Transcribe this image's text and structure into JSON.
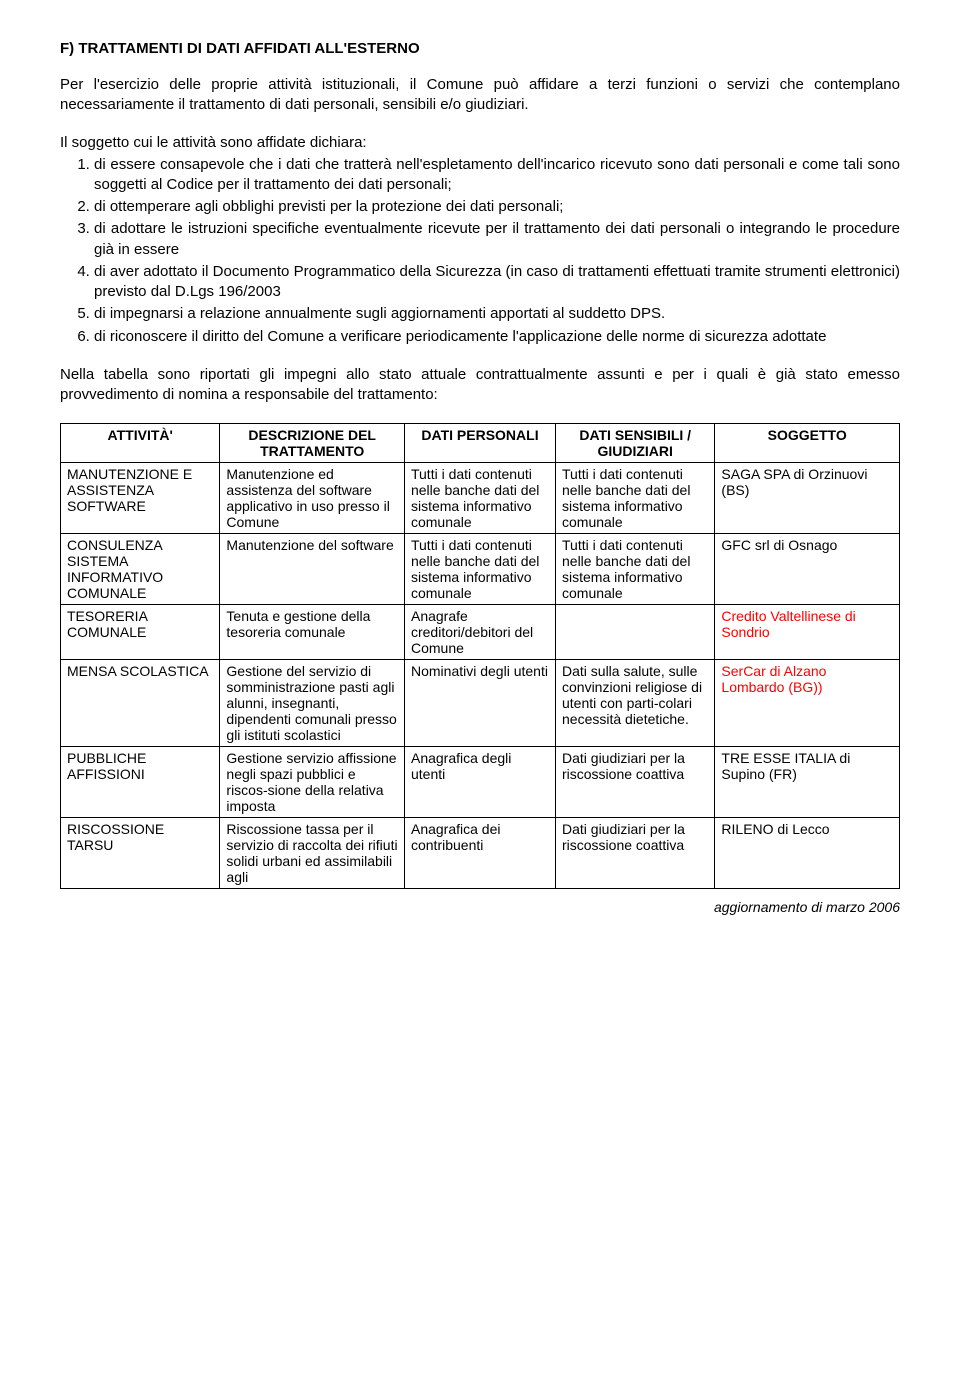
{
  "section_f": {
    "title": "F) TRATTAMENTI DI DATI AFFIDATI ALL'ESTERNO",
    "intro": "Per l'esercizio delle proprie attività istituzionali, il Comune può affidare a terzi funzioni o servizi che contemplano necessariamente il trattamento di dati personali, sensibili e/o giudiziari.",
    "list_intro": "Il soggetto cui le attività sono affidate dichiara:",
    "items": [
      "di essere consapevole che i dati che tratterà nell'espletamento dell'incarico ricevuto sono dati personali e come tali sono soggetti al Codice per il trattamento dei dati personali;",
      "di ottemperare agli obblighi previsti per la protezione dei dati personali;",
      "di adottare le istruzioni specifiche eventualmente ricevute per il trattamento dei dati personali o integrando le procedure già in essere",
      "di aver adottato il Documento Programmatico della Sicurezza (in caso di trattamenti effettuati tramite strumenti elettronici) previsto dal D.Lgs 196/2003",
      "di impegnarsi a relazione annualmente sugli aggiornamenti apportati al suddetto DPS.",
      "di riconoscere il diritto del Comune a verificare periodicamente l'applicazione delle norme di sicurezza adottate"
    ],
    "table_intro": "Nella tabella sono riportati gli impegni allo stato attuale contrattualmente assunti e per i quali è già stato emesso provvedimento di nomina a responsabile del trattamento:"
  },
  "table": {
    "col_widths": [
      "19%",
      "22%",
      "18%",
      "19%",
      "22%"
    ],
    "headers": [
      "ATTIVITÀ'",
      "DESCRIZIONE DEL TRATTAMENTO",
      "DATI PERSONALI",
      "DATI SENSIBILI / GIUDIZIARI",
      "SOGGETTO"
    ],
    "rows": [
      {
        "attivita": "MANUTENZIONE E ASSISTENZA SOFTWARE",
        "descrizione": "Manutenzione ed assistenza del software applicativo in uso presso il Comune",
        "personali": "Tutti i dati contenuti nelle banche dati del sistema informativo comunale",
        "sensibili": "Tutti i dati contenuti nelle banche dati del sistema informativo comunale",
        "soggetto": "SAGA SPA di Orzinuovi (BS)",
        "soggetto_red": false
      },
      {
        "attivita": "CONSULENZA SISTEMA INFORMATIVO COMUNALE",
        "descrizione": "Manutenzione del software",
        "personali": "Tutti i dati contenuti nelle banche dati del sistema informativo comunale",
        "sensibili": "Tutti i dati contenuti nelle banche dati del sistema informativo comunale",
        "soggetto": "GFC srl di Osnago",
        "soggetto_red": false
      },
      {
        "attivita": "TESORERIA COMUNALE",
        "descrizione": "Tenuta e gestione della tesoreria comunale",
        "personali": "Anagrafe creditori/debitori del Comune",
        "sensibili": "",
        "soggetto": "Credito Valtellinese di Sondrio",
        "soggetto_red": true
      },
      {
        "attivita": "MENSA SCOLASTICA",
        "descrizione": "Gestione del servizio di somministrazione pasti agli alunni, insegnanti, dipendenti comunali presso gli istituti scolastici",
        "personali": "Nominativi degli utenti",
        "sensibili": "Dati sulla salute, sulle convinzioni religiose di utenti con parti-colari necessità dietetiche.",
        "soggetto": "SerCar di Alzano Lombardo (BG))",
        "soggetto_red": true
      },
      {
        "attivita": "PUBBLICHE AFFISSIONI",
        "descrizione": "Gestione servizio affissione negli spazi pubblici e riscos-sione della relativa imposta",
        "personali": "Anagrafica degli utenti",
        "sensibili": "Dati giudiziari per la riscossione coattiva",
        "soggetto": "TRE ESSE ITALIA di Supino (FR)",
        "soggetto_red": false
      },
      {
        "attivita": "RISCOSSIONE TARSU",
        "descrizione": "Riscossione tassa per il servizio di raccolta dei rifiuti solidi urbani ed assimilabili agli",
        "personali": "Anagrafica dei contribuenti",
        "sensibili": "Dati giudiziari per la riscossione coattiva",
        "soggetto": "RILENO di Lecco",
        "soggetto_red": false
      }
    ]
  },
  "footer": "aggiornamento di marzo 2006",
  "colors": {
    "text": "#000000",
    "red": "#ff0000",
    "background": "#ffffff",
    "border": "#000000"
  }
}
